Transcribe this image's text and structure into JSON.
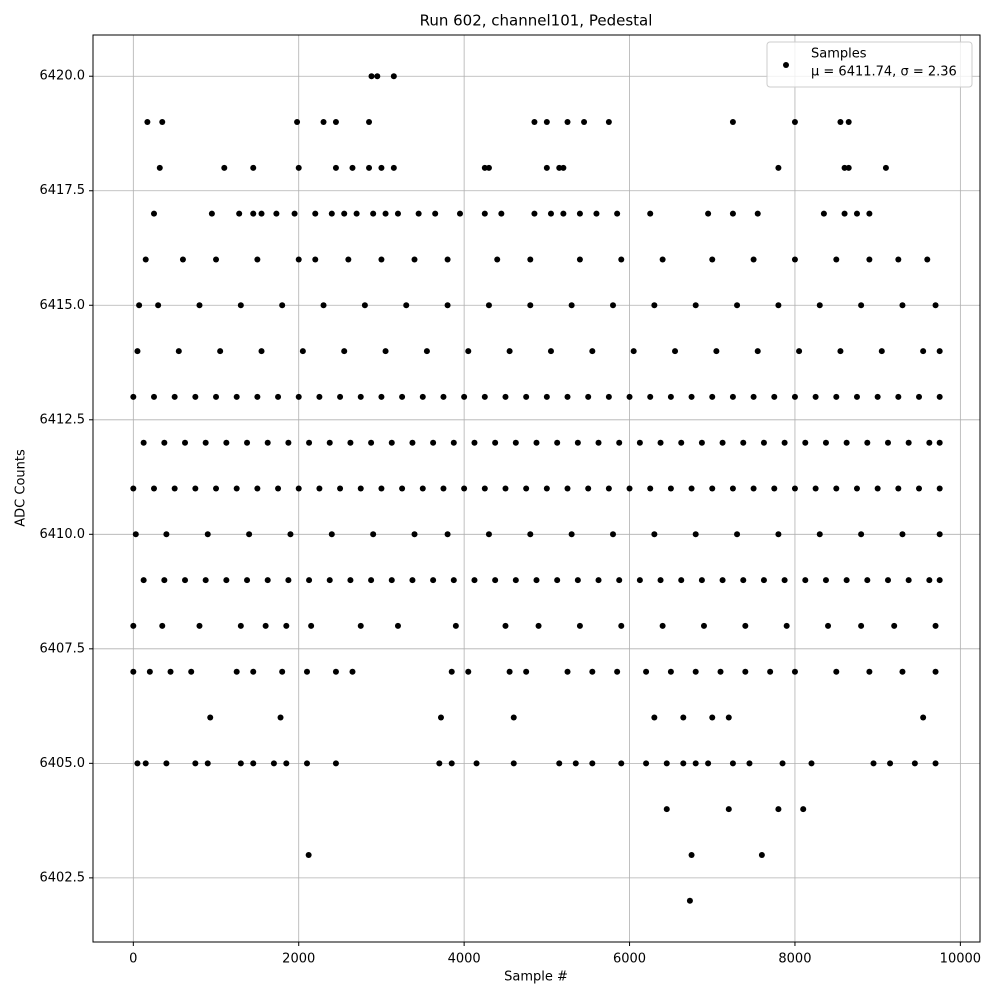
{
  "chart_data": {
    "type": "scatter",
    "title": "Run 602, channel101, Pedestal",
    "x_label": "Sample #",
    "y_label": "ADC Counts",
    "series": [
      {
        "name": "Samples",
        "color": "#000000",
        "x": [
          0,
          250,
          500,
          750,
          1000,
          1250,
          1500,
          1750,
          2000,
          2250,
          2500,
          2750,
          3000,
          3250,
          3500,
          3750,
          4000,
          4250,
          4500,
          4750,
          5000,
          5250,
          5500,
          5750,
          6000,
          6250,
          6500,
          6750,
          7000,
          7250,
          7500,
          7750,
          8000,
          8250,
          8500,
          8750,
          9000,
          9250,
          9500,
          9750,
          125,
          375,
          625,
          875,
          1125,
          1375,
          1625,
          1875,
          2125,
          2375,
          2625,
          2875,
          3125,
          3375,
          3625,
          3875,
          4125,
          4375,
          4625,
          4875,
          5125,
          5375,
          5625,
          5875,
          6125,
          6375,
          6625,
          6875,
          7125,
          7375,
          7625,
          7875,
          8125,
          8375,
          8625,
          8875,
          9125,
          9375,
          9625,
          9750,
          0,
          250,
          500,
          750,
          1000,
          1250,
          1500,
          1750,
          2000,
          2250,
          2500,
          2750,
          3000,
          3250,
          3500,
          3750,
          4000,
          4250,
          4500,
          4750,
          5000,
          5250,
          5500,
          5750,
          6000,
          6250,
          6500,
          6750,
          7000,
          7250,
          7500,
          7750,
          8000,
          8250,
          8500,
          8750,
          9000,
          9250,
          9500,
          9750,
          125,
          375,
          625,
          875,
          1125,
          1375,
          1625,
          1875,
          2125,
          2375,
          2625,
          2875,
          3125,
          3375,
          3625,
          3875,
          4125,
          4375,
          4625,
          4875,
          5125,
          5375,
          5625,
          5875,
          6125,
          6375,
          6625,
          6875,
          7125,
          7375,
          7625,
          7875,
          8125,
          8375,
          8625,
          8875,
          9125,
          9375,
          9625,
          9750,
          50,
          550,
          1050,
          1550,
          2050,
          2550,
          3050,
          3550,
          4050,
          4550,
          5050,
          5550,
          6050,
          6550,
          7050,
          7550,
          8050,
          8550,
          9050,
          9550,
          9750,
          70,
          300,
          800,
          1300,
          1800,
          2300,
          2800,
          3300,
          3800,
          4300,
          4800,
          5300,
          5800,
          6300,
          6800,
          7300,
          7800,
          8300,
          8800,
          9300,
          9700,
          30,
          400,
          900,
          1400,
          1900,
          2400,
          2900,
          3400,
          3800,
          4300,
          4800,
          5300,
          5800,
          6300,
          6800,
          7300,
          7800,
          8300,
          8800,
          9300,
          9750,
          150,
          600,
          1000,
          1500,
          2000,
          2200,
          2600,
          3000,
          3400,
          3800,
          4400,
          4800,
          5400,
          5900,
          6400,
          7000,
          7500,
          8000,
          8500,
          8900,
          9250,
          9600,
          0,
          350,
          800,
          1300,
          1600,
          1850,
          2150,
          2750,
          3200,
          3900,
          4500,
          4900,
          5400,
          5900,
          6400,
          6900,
          7400,
          7900,
          8400,
          8800,
          9200,
          9700,
          0,
          200,
          450,
          700,
          1250,
          1450,
          1800,
          2100,
          2450,
          2650,
          3850,
          4050,
          4550,
          4750,
          5250,
          5550,
          5850,
          6200,
          6500,
          6800,
          7100,
          7400,
          7700,
          8000,
          8500,
          8900,
          9300,
          9700,
          50,
          150,
          400,
          750,
          900,
          1300,
          1450,
          1700,
          1850,
          2100,
          2450,
          3700,
          3850,
          4150,
          4600,
          5150,
          5350,
          5550,
          5900,
          6200,
          6450,
          6650,
          6800,
          6950,
          7250,
          7450,
          7850,
          8200,
          8950,
          9150,
          9450,
          9700,
          250,
          950,
          1280,
          1450,
          1550,
          1730,
          1950,
          2200,
          2400,
          2550,
          2700,
          2900,
          3050,
          3200,
          3450,
          3650,
          3950,
          4250,
          4450,
          4850,
          5050,
          5200,
          5400,
          5600,
          5850,
          6250,
          6950,
          7250,
          7550,
          8350,
          8600,
          8750,
          8900,
          320,
          1100,
          1450,
          2000,
          2450,
          2650,
          2850,
          3000,
          3150,
          4250,
          4300,
          5000,
          5150,
          5200,
          7800,
          8600,
          8650,
          9100,
          170,
          350,
          1980,
          2300,
          2450,
          2850,
          4850,
          5000,
          5250,
          5450,
          5750,
          7250,
          8000,
          8550,
          8650,
          2880,
          2950,
          3150,
          930,
          1780,
          3720,
          4600,
          6300,
          6650,
          7000,
          7200,
          9550,
          6450,
          7200,
          7800,
          8100,
          2120,
          6750,
          7600,
          6730
        ],
        "values": [
          6413,
          6413,
          6413,
          6413,
          6413,
          6413,
          6413,
          6413,
          6413,
          6413,
          6413,
          6413,
          6413,
          6413,
          6413,
          6413,
          6413,
          6413,
          6413,
          6413,
          6413,
          6413,
          6413,
          6413,
          6413,
          6413,
          6413,
          6413,
          6413,
          6413,
          6413,
          6413,
          6413,
          6413,
          6413,
          6413,
          6413,
          6413,
          6413,
          6413,
          6412,
          6412,
          6412,
          6412,
          6412,
          6412,
          6412,
          6412,
          6412,
          6412,
          6412,
          6412,
          6412,
          6412,
          6412,
          6412,
          6412,
          6412,
          6412,
          6412,
          6412,
          6412,
          6412,
          6412,
          6412,
          6412,
          6412,
          6412,
          6412,
          6412,
          6412,
          6412,
          6412,
          6412,
          6412,
          6412,
          6412,
          6412,
          6412,
          6412,
          6411,
          6411,
          6411,
          6411,
          6411,
          6411,
          6411,
          6411,
          6411,
          6411,
          6411,
          6411,
          6411,
          6411,
          6411,
          6411,
          6411,
          6411,
          6411,
          6411,
          6411,
          6411,
          6411,
          6411,
          6411,
          6411,
          6411,
          6411,
          6411,
          6411,
          6411,
          6411,
          6411,
          6411,
          6411,
          6411,
          6411,
          6411,
          6411,
          6411,
          6409,
          6409,
          6409,
          6409,
          6409,
          6409,
          6409,
          6409,
          6409,
          6409,
          6409,
          6409,
          6409,
          6409,
          6409,
          6409,
          6409,
          6409,
          6409,
          6409,
          6409,
          6409,
          6409,
          6409,
          6409,
          6409,
          6409,
          6409,
          6409,
          6409,
          6409,
          6409,
          6409,
          6409,
          6409,
          6409,
          6409,
          6409,
          6409,
          6409,
          6414,
          6414,
          6414,
          6414,
          6414,
          6414,
          6414,
          6414,
          6414,
          6414,
          6414,
          6414,
          6414,
          6414,
          6414,
          6414,
          6414,
          6414,
          6414,
          6414,
          6414,
          6415,
          6415,
          6415,
          6415,
          6415,
          6415,
          6415,
          6415,
          6415,
          6415,
          6415,
          6415,
          6415,
          6415,
          6415,
          6415,
          6415,
          6415,
          6415,
          6415,
          6415,
          6410,
          6410,
          6410,
          6410,
          6410,
          6410,
          6410,
          6410,
          6410,
          6410,
          6410,
          6410,
          6410,
          6410,
          6410,
          6410,
          6410,
          6410,
          6410,
          6410,
          6410,
          6416,
          6416,
          6416,
          6416,
          6416,
          6416,
          6416,
          6416,
          6416,
          6416,
          6416,
          6416,
          6416,
          6416,
          6416,
          6416,
          6416,
          6416,
          6416,
          6416,
          6416,
          6416,
          6408,
          6408,
          6408,
          6408,
          6408,
          6408,
          6408,
          6408,
          6408,
          6408,
          6408,
          6408,
          6408,
          6408,
          6408,
          6408,
          6408,
          6408,
          6408,
          6408,
          6408,
          6408,
          6407,
          6407,
          6407,
          6407,
          6407,
          6407,
          6407,
          6407,
          6407,
          6407,
          6407,
          6407,
          6407,
          6407,
          6407,
          6407,
          6407,
          6407,
          6407,
          6407,
          6407,
          6407,
          6407,
          6407,
          6407,
          6407,
          6407,
          6407,
          6405,
          6405,
          6405,
          6405,
          6405,
          6405,
          6405,
          6405,
          6405,
          6405,
          6405,
          6405,
          6405,
          6405,
          6405,
          6405,
          6405,
          6405,
          6405,
          6405,
          6405,
          6405,
          6405,
          6405,
          6405,
          6405,
          6405,
          6405,
          6405,
          6405,
          6405,
          6405,
          6417,
          6417,
          6417,
          6417,
          6417,
          6417,
          6417,
          6417,
          6417,
          6417,
          6417,
          6417,
          6417,
          6417,
          6417,
          6417,
          6417,
          6417,
          6417,
          6417,
          6417,
          6417,
          6417,
          6417,
          6417,
          6417,
          6417,
          6417,
          6417,
          6417,
          6417,
          6417,
          6417,
          6418,
          6418,
          6418,
          6418,
          6418,
          6418,
          6418,
          6418,
          6418,
          6418,
          6418,
          6418,
          6418,
          6418,
          6418,
          6418,
          6418,
          6418,
          6419,
          6419,
          6419,
          6419,
          6419,
          6419,
          6419,
          6419,
          6419,
          6419,
          6419,
          6419,
          6419,
          6419,
          6419,
          6420,
          6420,
          6420,
          6406,
          6406,
          6406,
          6406,
          6406,
          6406,
          6406,
          6406,
          6406,
          6404,
          6404,
          6404,
          6404,
          6403,
          6403,
          6403,
          6402
        ]
      }
    ],
    "legend_note": "μ = 6411.74, σ = 2.36",
    "legend_position": "upper right",
    "xlim": [
      -487.5,
      10237.5
    ],
    "xticks": [
      0,
      2000,
      4000,
      6000,
      8000,
      10000
    ],
    "ylim": [
      6401.1,
      6420.9
    ],
    "yticks": [
      6402.5,
      {
        "value": 6405,
        "label": "6405.0"
      },
      6407.5,
      {
        "value": 6410,
        "label": "6410.0"
      },
      6412.5,
      {
        "value": 6415,
        "label": "6415.0"
      },
      6417.5,
      {
        "value": 6420,
        "label": "6420.0"
      }
    ],
    "grid": true
  }
}
